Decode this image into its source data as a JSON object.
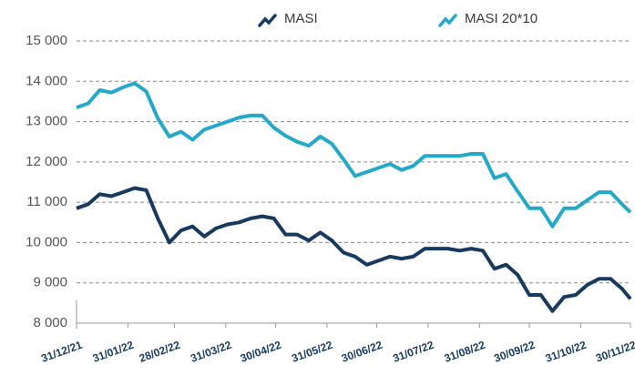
{
  "chart_data": {
    "type": "line",
    "x": [
      "31/12/21",
      "07/01/22",
      "14/01/22",
      "21/01/22",
      "28/01/22",
      "04/02/22",
      "11/02/22",
      "18/02/22",
      "25/02/22",
      "04/03/22",
      "11/03/22",
      "18/03/22",
      "25/03/22",
      "01/04/22",
      "08/04/22",
      "15/04/22",
      "22/04/22",
      "29/04/22",
      "06/05/22",
      "13/05/22",
      "20/05/22",
      "27/05/22",
      "03/06/22",
      "10/06/22",
      "17/06/22",
      "24/06/22",
      "01/07/22",
      "08/07/22",
      "15/07/22",
      "22/07/22",
      "29/07/22",
      "05/08/22",
      "12/08/22",
      "19/08/22",
      "26/08/22",
      "02/09/22",
      "09/09/22",
      "16/09/22",
      "23/09/22",
      "30/09/22",
      "07/10/22",
      "14/10/22",
      "21/10/22",
      "28/10/22",
      "04/11/22",
      "11/11/22",
      "18/11/22",
      "25/11/22",
      "30/11/22"
    ],
    "series": [
      {
        "name": "MASI",
        "color": "#173a5e",
        "values": [
          10850,
          10950,
          11200,
          11150,
          11250,
          11350,
          11300,
          10600,
          10000,
          10300,
          10400,
          10150,
          10350,
          10450,
          10500,
          10600,
          10650,
          10600,
          10200,
          10200,
          10050,
          10250,
          10050,
          9750,
          9650,
          9450,
          9550,
          9650,
          9600,
          9650,
          9850,
          9850,
          9850,
          9800,
          9850,
          9800,
          9350,
          9450,
          9200,
          8700,
          8700,
          8300,
          8650,
          8700,
          8950,
          9100,
          9100,
          8850,
          8600
        ]
      },
      {
        "name": "MASI 20*10",
        "color": "#25a9c8",
        "values": [
          13350,
          13450,
          13780,
          13720,
          13850,
          13950,
          13750,
          13080,
          12630,
          12750,
          12550,
          12800,
          12900,
          13000,
          13100,
          13150,
          13150,
          12850,
          12650,
          12500,
          12400,
          12630,
          12450,
          12060,
          11650,
          11750,
          11850,
          11950,
          11800,
          11900,
          12150,
          12150,
          12150,
          12150,
          12200,
          12200,
          11600,
          11700,
          11270,
          10850,
          10850,
          10400,
          10850,
          10850,
          11050,
          11250,
          11250,
          10950,
          10750
        ]
      }
    ],
    "xlim": [
      "31/12/21",
      "30/11/22"
    ],
    "xticks": [
      "31/12/21",
      "31/01/22",
      "28/02/22",
      "31/03/22",
      "30/04/22",
      "31/05/22",
      "30/06/22",
      "31/07/22",
      "31/08/22",
      "30/09/22",
      "31/10/22",
      "30/11/22"
    ],
    "ylim": [
      8000,
      15000
    ],
    "yticks": [
      {
        "value": 8000,
        "label": "8 000"
      },
      {
        "value": 9000,
        "label": "9 000"
      },
      {
        "value": 10000,
        "label": "10 000"
      },
      {
        "value": 11000,
        "label": "11 000"
      },
      {
        "value": 12000,
        "label": "12 000"
      },
      {
        "value": 13000,
        "label": "13 000"
      },
      {
        "value": 14000,
        "label": "14 000"
      },
      {
        "value": 15000,
        "label": "15 000"
      }
    ],
    "grid": true
  }
}
